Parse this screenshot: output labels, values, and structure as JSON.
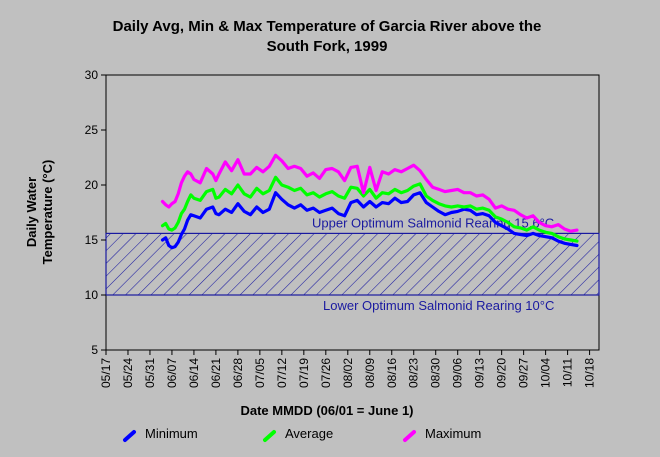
{
  "chart_data": {
    "type": "line",
    "title_lines": [
      "Daily Avg, Min & Max Temperature of Garcia River above the",
      "South Fork, 1999"
    ],
    "xlabel": "Date MMDD (06/01 = June 1)",
    "ylabel_lines": [
      "Daily Water",
      "Temperature (°C)"
    ],
    "ylim": [
      5,
      30
    ],
    "y_ticks": [
      5,
      10,
      15,
      20,
      25,
      30
    ],
    "x_ticks": [
      "05/17",
      "05/24",
      "05/31",
      "06/07",
      "06/14",
      "06/21",
      "06/28",
      "07/05",
      "07/12",
      "07/19",
      "07/26",
      "08/02",
      "08/09",
      "08/16",
      "08/23",
      "08/30",
      "09/06",
      "09/13",
      "09/20",
      "09/27",
      "10/04",
      "10/11",
      "10/18"
    ],
    "x_unit": "days since 05/17",
    "x_range": [
      0,
      157
    ],
    "grid": false,
    "legend_position": "bottom",
    "bands": [
      {
        "lower": 10,
        "upper": 15.6,
        "color": "#1a1aa0",
        "upper_label": "Upper Optimum Salmonid Rearing 15.6°C",
        "lower_label": "Lower Optimum Salmonid Rearing 10°C"
      }
    ],
    "series": [
      {
        "name": "Minimum",
        "color": "#0000ff",
        "x": [
          18,
          19,
          20,
          21,
          22,
          23,
          24,
          25,
          26,
          27,
          28,
          30,
          32,
          34,
          35,
          36,
          38,
          40,
          42,
          44,
          46,
          48,
          50,
          52,
          54,
          56,
          58,
          60,
          62,
          64,
          66,
          68,
          70,
          72,
          74,
          76,
          78,
          80,
          82,
          84,
          86,
          88,
          90,
          92,
          94,
          96,
          98,
          100,
          102,
          104,
          106,
          108,
          110,
          112,
          114,
          116,
          118,
          120,
          122,
          124,
          126,
          128,
          130,
          132,
          134,
          136,
          138,
          140,
          142,
          144,
          146,
          148,
          150
        ],
        "values": [
          15.0,
          15.2,
          14.5,
          14.3,
          14.4,
          14.8,
          15.5,
          16.0,
          16.8,
          17.3,
          17.2,
          17.0,
          17.8,
          18.0,
          17.4,
          17.3,
          17.8,
          17.5,
          18.3,
          17.6,
          17.3,
          18.0,
          17.5,
          17.8,
          19.3,
          18.7,
          18.2,
          17.9,
          18.2,
          17.7,
          17.9,
          17.5,
          17.7,
          17.9,
          17.4,
          17.2,
          18.4,
          18.6,
          18.0,
          18.5,
          18.0,
          18.4,
          18.3,
          18.8,
          18.4,
          18.5,
          19.1,
          19.3,
          18.4,
          18.0,
          17.6,
          17.3,
          17.5,
          17.6,
          17.8,
          17.7,
          17.3,
          17.4,
          17.2,
          16.6,
          16.3,
          16.0,
          15.6,
          15.5,
          15.4,
          15.6,
          15.4,
          15.3,
          15.2,
          14.9,
          14.7,
          14.6,
          14.5
        ]
      },
      {
        "name": "Average",
        "color": "#00ff00",
        "x": [
          18,
          19,
          20,
          21,
          22,
          23,
          24,
          25,
          26,
          27,
          28,
          30,
          32,
          34,
          35,
          36,
          38,
          40,
          42,
          44,
          46,
          48,
          50,
          52,
          54,
          56,
          58,
          60,
          62,
          64,
          66,
          68,
          70,
          72,
          74,
          76,
          78,
          80,
          82,
          84,
          86,
          88,
          90,
          92,
          94,
          96,
          98,
          100,
          102,
          104,
          106,
          108,
          110,
          112,
          114,
          116,
          118,
          120,
          122,
          124,
          126,
          128,
          130,
          132,
          134,
          136,
          138,
          140,
          142,
          144,
          146,
          148,
          150
        ],
        "values": [
          16.3,
          16.5,
          16.0,
          15.9,
          16.1,
          16.6,
          17.4,
          17.8,
          18.5,
          19.1,
          18.8,
          18.6,
          19.4,
          19.6,
          18.8,
          18.9,
          19.6,
          19.2,
          20.0,
          19.2,
          18.9,
          19.7,
          19.2,
          19.5,
          20.7,
          20.0,
          19.8,
          19.5,
          19.7,
          19.1,
          19.3,
          18.9,
          19.2,
          19.4,
          19.0,
          18.8,
          19.8,
          19.7,
          19.0,
          19.6,
          18.8,
          19.3,
          19.2,
          19.6,
          19.3,
          19.5,
          19.9,
          20.1,
          19.0,
          18.6,
          18.3,
          18.1,
          18.0,
          18.1,
          18.0,
          18.1,
          17.8,
          17.9,
          17.7,
          17.1,
          16.9,
          16.6,
          16.2,
          16.1,
          15.9,
          16.2,
          15.9,
          15.7,
          15.6,
          15.3,
          15.1,
          15.0,
          14.9
        ]
      },
      {
        "name": "Maximum",
        "color": "#ff00ff",
        "x": [
          18,
          19,
          20,
          21,
          22,
          23,
          24,
          25,
          26,
          27,
          28,
          30,
          32,
          34,
          35,
          36,
          38,
          40,
          42,
          44,
          46,
          48,
          50,
          52,
          54,
          56,
          58,
          60,
          62,
          64,
          66,
          68,
          70,
          72,
          74,
          76,
          78,
          80,
          82,
          84,
          86,
          88,
          90,
          92,
          94,
          96,
          98,
          100,
          102,
          104,
          106,
          108,
          110,
          112,
          114,
          116,
          118,
          120,
          122,
          124,
          126,
          128,
          130,
          132,
          134,
          136,
          138,
          140,
          142,
          144,
          146,
          148,
          150
        ],
        "values": [
          18.5,
          18.2,
          18.0,
          18.3,
          18.5,
          19.2,
          20.2,
          20.8,
          21.2,
          21.0,
          20.5,
          20.2,
          21.5,
          21.0,
          20.4,
          21.0,
          22.1,
          21.3,
          22.3,
          21.0,
          21.0,
          21.6,
          21.2,
          21.7,
          22.7,
          22.2,
          21.5,
          21.7,
          21.5,
          20.8,
          21.1,
          20.6,
          21.4,
          21.5,
          21.2,
          20.4,
          21.6,
          21.7,
          19.3,
          21.6,
          19.5,
          21.2,
          21.0,
          21.4,
          21.2,
          21.5,
          21.8,
          21.3,
          20.5,
          19.8,
          19.6,
          19.4,
          19.5,
          19.6,
          19.3,
          19.3,
          19.0,
          19.1,
          18.7,
          17.9,
          18.1,
          17.8,
          17.7,
          17.3,
          17.0,
          17.2,
          16.6,
          16.3,
          16.2,
          16.4,
          16.0,
          15.8,
          15.9
        ]
      }
    ]
  }
}
